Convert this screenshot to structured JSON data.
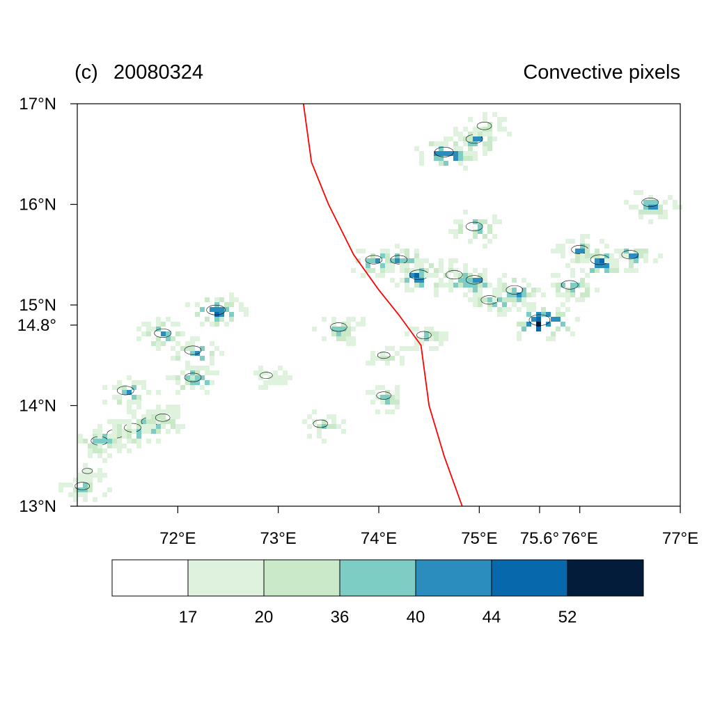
{
  "panel": {
    "label": "(c)",
    "date": "20080324",
    "right_title": "Convective pixels"
  },
  "map": {
    "lon_range": [
      71,
      77
    ],
    "lat_range": [
      13,
      17
    ],
    "lat_ticks": [
      {
        "value": 17,
        "label": "17°N"
      },
      {
        "value": 16,
        "label": "16°N"
      },
      {
        "value": 15,
        "label": "15°N"
      },
      {
        "value": 14.8,
        "label": "14.8°"
      },
      {
        "value": 14,
        "label": "14°N"
      },
      {
        "value": 13,
        "label": "13°N"
      }
    ],
    "lon_ticks": [
      {
        "value": 72,
        "label": "72°E"
      },
      {
        "value": 73,
        "label": "73°E"
      },
      {
        "value": 74,
        "label": "74°E"
      },
      {
        "value": 75,
        "label": "75°E"
      },
      {
        "value": 75.6,
        "label": "75.6°"
      },
      {
        "value": 76,
        "label": "76°E"
      },
      {
        "value": 77,
        "label": "77°E"
      }
    ],
    "boundary_color": "#ff0000",
    "boundary_line": [
      [
        73.25,
        17
      ],
      [
        73.33,
        16.42
      ],
      [
        73.5,
        16.0
      ],
      [
        73.75,
        15.5
      ],
      [
        74.0,
        15.15
      ],
      [
        74.2,
        14.9
      ],
      [
        74.42,
        14.6
      ],
      [
        74.5,
        14.0
      ],
      [
        74.65,
        13.5
      ],
      [
        74.83,
        13.0
      ]
    ],
    "clusters": [
      {
        "lon": 71.22,
        "lat": 13.65,
        "level": 4
      },
      {
        "lon": 71.38,
        "lat": 13.72,
        "level": 4
      },
      {
        "lon": 71.55,
        "lat": 13.78,
        "level": 4
      },
      {
        "lon": 71.72,
        "lat": 13.84,
        "level": 4
      },
      {
        "lon": 71.48,
        "lat": 14.15,
        "level": 4
      },
      {
        "lon": 71.85,
        "lat": 14.72,
        "level": 4
      },
      {
        "lon": 72.15,
        "lat": 14.55,
        "level": 4
      },
      {
        "lon": 72.15,
        "lat": 14.28,
        "level": 4
      },
      {
        "lon": 72.38,
        "lat": 14.95,
        "level": 5
      },
      {
        "lon": 71.1,
        "lat": 13.35,
        "level": 1
      },
      {
        "lon": 71.05,
        "lat": 13.2,
        "level": 3
      },
      {
        "lon": 71.85,
        "lat": 13.88,
        "level": 3
      },
      {
        "lon": 73.42,
        "lat": 13.82,
        "level": 3
      },
      {
        "lon": 72.88,
        "lat": 14.3,
        "level": 2
      },
      {
        "lon": 73.6,
        "lat": 14.78,
        "level": 4
      },
      {
        "lon": 73.95,
        "lat": 15.45,
        "level": 4
      },
      {
        "lon": 74.2,
        "lat": 15.45,
        "level": 4
      },
      {
        "lon": 74.4,
        "lat": 15.3,
        "level": 5
      },
      {
        "lon": 74.75,
        "lat": 15.3,
        "level": 4
      },
      {
        "lon": 74.95,
        "lat": 15.25,
        "level": 4
      },
      {
        "lon": 75.1,
        "lat": 15.05,
        "level": 4
      },
      {
        "lon": 75.35,
        "lat": 15.15,
        "level": 4
      },
      {
        "lon": 75.6,
        "lat": 14.85,
        "level": 6
      },
      {
        "lon": 75.9,
        "lat": 15.2,
        "level": 4
      },
      {
        "lon": 76.0,
        "lat": 15.55,
        "level": 4
      },
      {
        "lon": 76.2,
        "lat": 15.45,
        "level": 5
      },
      {
        "lon": 76.5,
        "lat": 15.5,
        "level": 4
      },
      {
        "lon": 76.7,
        "lat": 16.02,
        "level": 4
      },
      {
        "lon": 74.65,
        "lat": 16.52,
        "level": 5
      },
      {
        "lon": 74.95,
        "lat": 16.65,
        "level": 4
      },
      {
        "lon": 75.05,
        "lat": 16.78,
        "level": 3
      },
      {
        "lon": 74.95,
        "lat": 15.78,
        "level": 4
      },
      {
        "lon": 74.05,
        "lat": 14.5,
        "level": 2
      },
      {
        "lon": 74.05,
        "lat": 14.1,
        "level": 3
      },
      {
        "lon": 74.45,
        "lat": 14.7,
        "level": 3
      }
    ]
  },
  "colorbar": {
    "colors": [
      "#ffffff",
      "#dff2dd",
      "#c9e9c8",
      "#7ecdc4",
      "#2b8cbe",
      "#0868ac",
      "#021c3a"
    ],
    "labels": [
      "17",
      "20",
      "36",
      "40",
      "44",
      "52"
    ]
  }
}
